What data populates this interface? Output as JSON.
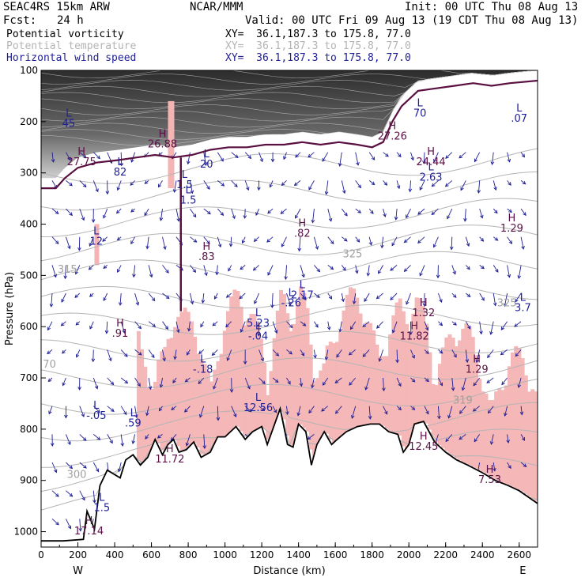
{
  "header": {
    "model": "SEAC4RS 15km ARW",
    "org": "NCAR/MMM",
    "init": "Init: 00 UTC Thu 08 Aug 13",
    "fcst_label": "Fcst:",
    "fcst_value": "24 h",
    "valid": "Valid: 00 UTC Fri 09 Aug 13 (19 CDT Thu 08 Aug 13)",
    "fields": [
      {
        "name": "Potential vorticity",
        "xy": "XY=  36.1,187.3 to 175.8, 77.0",
        "color": "#000000"
      },
      {
        "name": "Potential temperature",
        "xy": "XY=  36.1,187.3 to 175.8, 77.0",
        "color": "#b4b4b4"
      },
      {
        "name": "Horizontal wind speed",
        "xy": "XY=  36.1,187.3 to 175.8, 77.0",
        "color": "#1e1e96"
      }
    ]
  },
  "colors": {
    "terrain_line": "#000000",
    "pv_shading": "#505050",
    "pink_shading": "#f4b4b4",
    "wind_contour": "#1e1e96",
    "theta_contour": "#b4b4b4",
    "pv_contour": "#5a1040",
    "annotation": "#5a1046"
  },
  "chart_data": {
    "type": "vertical-cross-section",
    "xlabel": "Distance (km)",
    "ylabel": "Pressure (hPa)",
    "x_ticks": [
      0,
      200,
      400,
      600,
      800,
      1000,
      1200,
      1400,
      1600,
      1800,
      2000,
      2200,
      2400,
      2600
    ],
    "y_ticks": [
      100,
      200,
      300,
      400,
      500,
      600,
      700,
      800,
      900,
      1000
    ],
    "xlim": [
      0,
      2700
    ],
    "ylim": [
      1030,
      100
    ],
    "left_endpoint": "W",
    "right_endpoint": "E",
    "terrain_surface": [
      {
        "x": 0,
        "p": 1018
      },
      {
        "x": 120,
        "p": 1018
      },
      {
        "x": 230,
        "p": 1015
      },
      {
        "x": 250,
        "p": 960
      },
      {
        "x": 290,
        "p": 995
      },
      {
        "x": 320,
        "p": 910
      },
      {
        "x": 360,
        "p": 880
      },
      {
        "x": 430,
        "p": 895
      },
      {
        "x": 460,
        "p": 860
      },
      {
        "x": 500,
        "p": 850
      },
      {
        "x": 540,
        "p": 870
      },
      {
        "x": 580,
        "p": 855
      },
      {
        "x": 620,
        "p": 820
      },
      {
        "x": 660,
        "p": 850
      },
      {
        "x": 690,
        "p": 830
      },
      {
        "x": 720,
        "p": 820
      },
      {
        "x": 750,
        "p": 845
      },
      {
        "x": 790,
        "p": 840
      },
      {
        "x": 830,
        "p": 825
      },
      {
        "x": 870,
        "p": 855
      },
      {
        "x": 920,
        "p": 845
      },
      {
        "x": 960,
        "p": 815
      },
      {
        "x": 1000,
        "p": 815
      },
      {
        "x": 1060,
        "p": 795
      },
      {
        "x": 1110,
        "p": 820
      },
      {
        "x": 1150,
        "p": 805
      },
      {
        "x": 1200,
        "p": 795
      },
      {
        "x": 1230,
        "p": 830
      },
      {
        "x": 1270,
        "p": 790
      },
      {
        "x": 1300,
        "p": 760
      },
      {
        "x": 1340,
        "p": 830
      },
      {
        "x": 1370,
        "p": 835
      },
      {
        "x": 1400,
        "p": 790
      },
      {
        "x": 1440,
        "p": 805
      },
      {
        "x": 1470,
        "p": 870
      },
      {
        "x": 1500,
        "p": 830
      },
      {
        "x": 1540,
        "p": 805
      },
      {
        "x": 1580,
        "p": 830
      },
      {
        "x": 1610,
        "p": 820
      },
      {
        "x": 1660,
        "p": 805
      },
      {
        "x": 1720,
        "p": 795
      },
      {
        "x": 1790,
        "p": 790
      },
      {
        "x": 1840,
        "p": 790
      },
      {
        "x": 1890,
        "p": 805
      },
      {
        "x": 1940,
        "p": 810
      },
      {
        "x": 1970,
        "p": 845
      },
      {
        "x": 2000,
        "p": 830
      },
      {
        "x": 2030,
        "p": 790
      },
      {
        "x": 2080,
        "p": 785
      },
      {
        "x": 2140,
        "p": 825
      },
      {
        "x": 2200,
        "p": 845
      },
      {
        "x": 2260,
        "p": 860
      },
      {
        "x": 2320,
        "p": 870
      },
      {
        "x": 2400,
        "p": 885
      },
      {
        "x": 2470,
        "p": 900
      },
      {
        "x": 2540,
        "p": 910
      },
      {
        "x": 2600,
        "p": 920
      },
      {
        "x": 2700,
        "p": 945
      }
    ],
    "tropopause_pv": [
      {
        "x": 0,
        "p": 330
      },
      {
        "x": 80,
        "p": 330
      },
      {
        "x": 130,
        "p": 310
      },
      {
        "x": 200,
        "p": 290
      },
      {
        "x": 300,
        "p": 280
      },
      {
        "x": 420,
        "p": 275
      },
      {
        "x": 520,
        "p": 270
      },
      {
        "x": 620,
        "p": 265
      },
      {
        "x": 720,
        "p": 270
      },
      {
        "x": 820,
        "p": 265
      },
      {
        "x": 920,
        "p": 255
      },
      {
        "x": 1020,
        "p": 250
      },
      {
        "x": 1120,
        "p": 250
      },
      {
        "x": 1220,
        "p": 245
      },
      {
        "x": 1320,
        "p": 245
      },
      {
        "x": 1420,
        "p": 240
      },
      {
        "x": 1520,
        "p": 245
      },
      {
        "x": 1620,
        "p": 240
      },
      {
        "x": 1720,
        "p": 245
      },
      {
        "x": 1800,
        "p": 250
      },
      {
        "x": 1860,
        "p": 240
      },
      {
        "x": 1910,
        "p": 200
      },
      {
        "x": 1960,
        "p": 170
      },
      {
        "x": 2050,
        "p": 140
      },
      {
        "x": 2150,
        "p": 135
      },
      {
        "x": 2250,
        "p": 130
      },
      {
        "x": 2350,
        "p": 125
      },
      {
        "x": 2450,
        "p": 130
      },
      {
        "x": 2550,
        "p": 125
      },
      {
        "x": 2700,
        "p": 120
      }
    ],
    "theta_labels": [
      {
        "x": 140,
        "p": 895,
        "text": "300"
      },
      {
        "x": 90,
        "p": 495,
        "text": "315"
      },
      {
        "x": 1640,
        "p": 465,
        "text": "325"
      },
      {
        "x": 2480,
        "p": 560,
        "text": "325"
      },
      {
        "x": 2240,
        "p": 750,
        "text": "319"
      },
      {
        "x": 10,
        "p": 680,
        "text": "70"
      }
    ],
    "extrema_labels": [
      {
        "x": 150,
        "p": 210,
        "kind": "L",
        "value": "45"
      },
      {
        "x": 220,
        "p": 285,
        "kind": "H",
        "value": "27.75"
      },
      {
        "x": 430,
        "p": 305,
        "kind": "L",
        "value": "82"
      },
      {
        "x": 660,
        "p": 250,
        "kind": "H",
        "value": "26.88"
      },
      {
        "x": 780,
        "p": 330,
        "kind": "L",
        "value": "1.5"
      },
      {
        "x": 800,
        "p": 360,
        "kind": "L",
        "value": "1.5"
      },
      {
        "x": 900,
        "p": 290,
        "kind": "L",
        "value": "20"
      },
      {
        "x": 300,
        "p": 440,
        "kind": "L",
        "value": "12"
      },
      {
        "x": 900,
        "p": 470,
        "kind": "H",
        "value": ".83"
      },
      {
        "x": 1420,
        "p": 425,
        "kind": "H",
        "value": ".82"
      },
      {
        "x": 1420,
        "p": 545,
        "kind": "L",
        "value": "2.17"
      },
      {
        "x": 1360,
        "p": 560,
        "kind": "L",
        "value": "-.26"
      },
      {
        "x": 1180,
        "p": 600,
        "kind": "L",
        "value": "5.23"
      },
      {
        "x": 1180,
        "p": 625,
        "kind": "L",
        "value": "-.04"
      },
      {
        "x": 430,
        "p": 620,
        "kind": "H",
        "value": ".91"
      },
      {
        "x": 880,
        "p": 690,
        "kind": "L",
        "value": "-.18"
      },
      {
        "x": 1180,
        "p": 765,
        "kind": "L",
        "value": "12.56"
      },
      {
        "x": 1910,
        "p": 235,
        "kind": "H",
        "value": "27.26"
      },
      {
        "x": 2120,
        "p": 285,
        "kind": "H",
        "value": "24.44"
      },
      {
        "x": 2120,
        "p": 315,
        "kind": "L",
        "value": "2.63"
      },
      {
        "x": 2080,
        "p": 580,
        "kind": "H",
        "value": "1.32"
      },
      {
        "x": 2030,
        "p": 625,
        "kind": "H",
        "value": "11.82"
      },
      {
        "x": 2370,
        "p": 690,
        "kind": "H",
        "value": "1.29"
      },
      {
        "x": 2560,
        "p": 415,
        "kind": "H",
        "value": "1.29"
      },
      {
        "x": 2620,
        "p": 570,
        "kind": "L",
        "value": "3.7"
      },
      {
        "x": 2600,
        "p": 200,
        "kind": "L",
        "value": ".07"
      },
      {
        "x": 2060,
        "p": 190,
        "kind": "L",
        "value": "70"
      },
      {
        "x": 300,
        "p": 780,
        "kind": "L",
        "value": "-.05"
      },
      {
        "x": 500,
        "p": 795,
        "kind": "L",
        "value": ".59"
      },
      {
        "x": 700,
        "p": 865,
        "kind": "H",
        "value": "11.72"
      },
      {
        "x": 2080,
        "p": 840,
        "kind": "H",
        "value": "12.45"
      },
      {
        "x": 2440,
        "p": 905,
        "kind": "H",
        "value": "7.53"
      },
      {
        "x": 330,
        "p": 960,
        "kind": "L",
        "value": "1.5"
      },
      {
        "x": 260,
        "p": 1005,
        "kind": "H",
        "value": "17.14"
      }
    ]
  }
}
